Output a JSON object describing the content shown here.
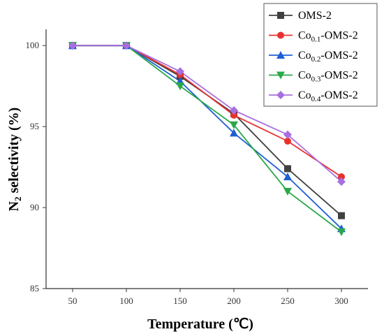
{
  "chart_data": {
    "type": "line",
    "xlabel": "Temperature (℃)",
    "ylabel_main": "N",
    "ylabel_sub": "2",
    "ylabel_rest": " selectivity (%)",
    "x": [
      50,
      100,
      150,
      200,
      250,
      300
    ],
    "ylim": [
      85,
      101.0
    ],
    "yticks": [
      85,
      90,
      95,
      100
    ],
    "grid": false,
    "legend_position": "top-right",
    "series": [
      {
        "name": "OMS-2",
        "name_main": "OMS-2",
        "name_sub": "",
        "name_tail": "",
        "color": "#404040",
        "marker": "square",
        "values": [
          100,
          100,
          98.1,
          95.8,
          92.4,
          89.5
        ]
      },
      {
        "name": "Co0.1-OMS-2",
        "name_main": "Co",
        "name_sub": "0.1",
        "name_tail": "-OMS-2",
        "color": "#e8312f",
        "marker": "circle",
        "values": [
          100,
          100,
          98.2,
          95.7,
          94.1,
          91.9
        ]
      },
      {
        "name": "Co0.2-OMS-2",
        "name_main": "Co",
        "name_sub": "0.2",
        "name_tail": "-OMS-2",
        "color": "#1f5fd6",
        "marker": "triangle-up",
        "values": [
          100,
          100,
          97.8,
          94.6,
          91.9,
          88.7
        ]
      },
      {
        "name": "Co0.3-OMS-2",
        "name_main": "Co",
        "name_sub": "0.3",
        "name_tail": "-OMS-2",
        "color": "#2aa84a",
        "marker": "triangle-down",
        "values": [
          100,
          100,
          97.5,
          95.1,
          91.0,
          88.5
        ]
      },
      {
        "name": "Co0.4-OMS-2",
        "name_main": "Co",
        "name_sub": "0.4",
        "name_tail": "-OMS-2",
        "color": "#a86fe0",
        "marker": "diamond",
        "values": [
          100,
          100,
          98.4,
          96.0,
          94.5,
          91.6
        ]
      }
    ]
  }
}
